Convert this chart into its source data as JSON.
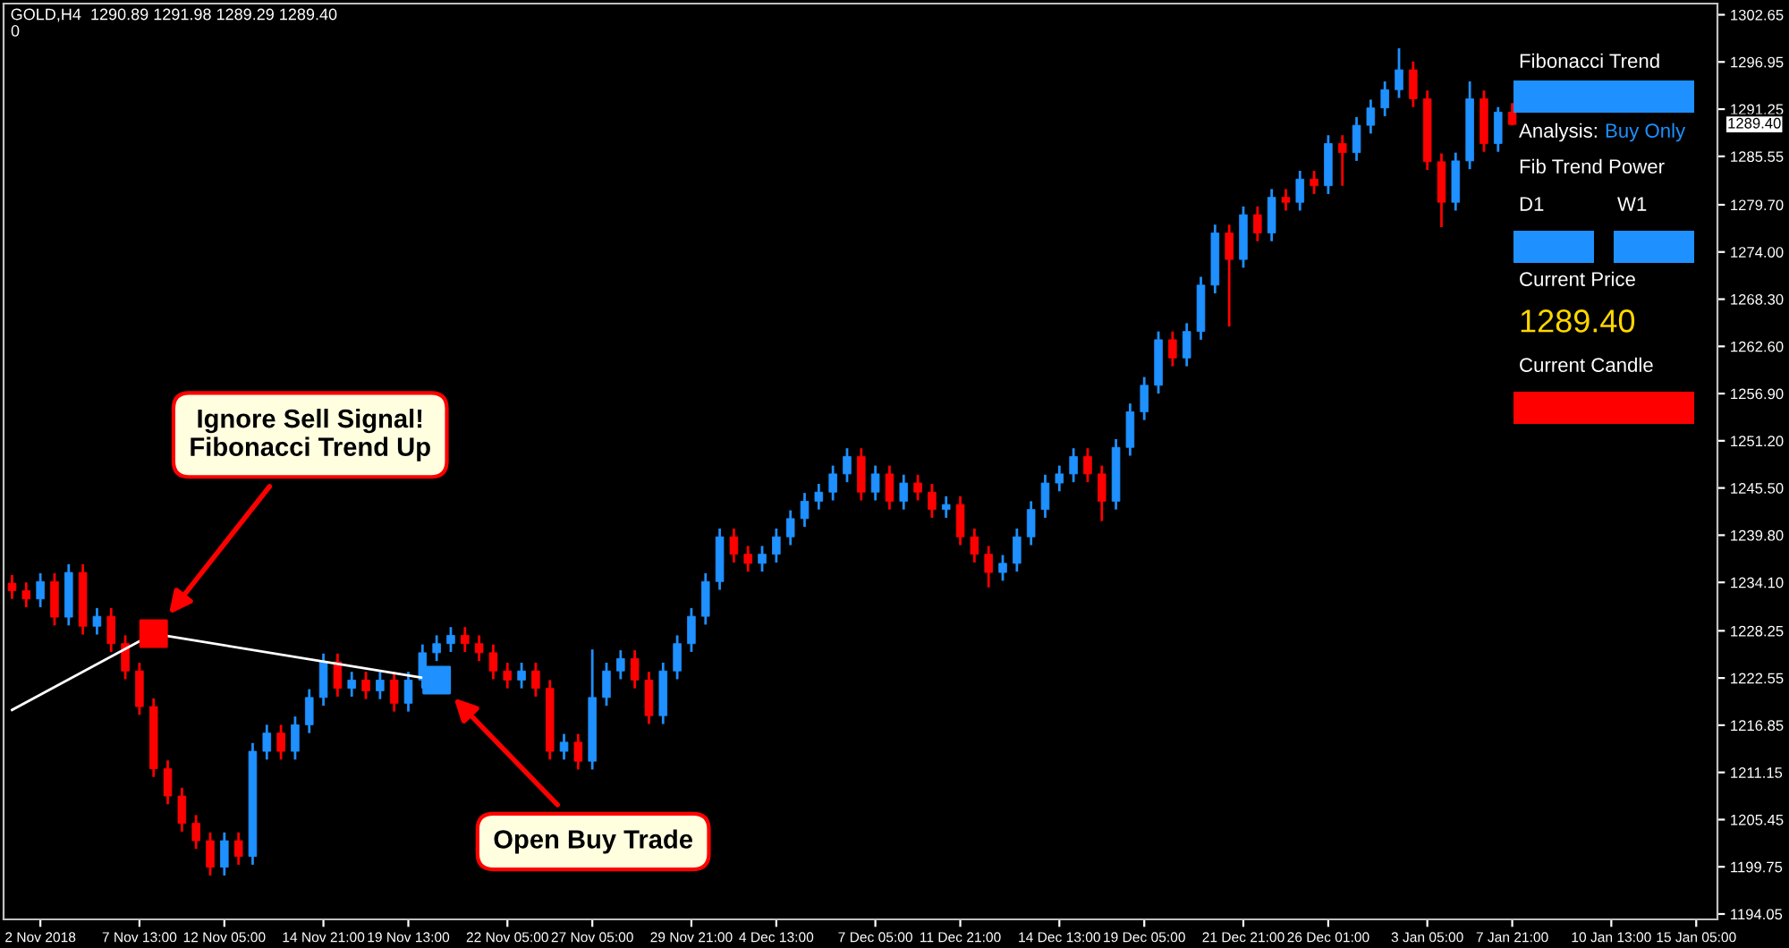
{
  "chart_data": {
    "type": "candlestick",
    "title": "GOLD,H4  1290.89 1291.98 1289.29 1289.40",
    "categories": [
      null,
      null,
      "2 Nov 2018",
      null,
      null,
      null,
      null,
      null,
      null,
      "7 Nov 13:00",
      null,
      null,
      null,
      null,
      null,
      "12 Nov 05:00",
      null,
      null,
      null,
      null,
      null,
      null,
      "14 Nov 21:00",
      null,
      null,
      null,
      null,
      null,
      "19 Nov 13:00",
      null,
      null,
      null,
      null,
      null,
      null,
      "22 Nov 05:00",
      null,
      null,
      null,
      null,
      null,
      "27 Nov 05:00",
      null,
      null,
      null,
      null,
      null,
      null,
      "29 Nov 21:00",
      null,
      null,
      null,
      null,
      null,
      "4 Dec 13:00",
      null,
      null,
      null,
      null,
      null,
      null,
      "7 Dec 05:00",
      null,
      null,
      null,
      null,
      null,
      "11 Dec 21:00",
      null,
      null,
      null,
      null,
      null,
      null,
      "14 Dec 13:00",
      null,
      null,
      null,
      null,
      null,
      "19 Dec 05:00",
      null,
      null,
      null,
      null,
      null,
      null,
      "21 Dec 21:00",
      null,
      null,
      null,
      null,
      null,
      "26 Dec 01:00",
      null,
      null,
      null,
      null,
      null,
      null,
      "3 Jan 05:00",
      null,
      null,
      null,
      null,
      null,
      "7 Jan 21:00",
      null,
      null,
      null,
      null,
      null,
      null,
      "10 Jan 13:00",
      null,
      null,
      null,
      null,
      null,
      "15 Jan 05:00",
      null
    ],
    "ohlc": [
      [
        1234.0,
        1235.0,
        1232.1,
        1233.1
      ],
      [
        1233.1,
        1234.1,
        1231.1,
        1232.1
      ],
      [
        1232.1,
        1235.2,
        1231.1,
        1234.2
      ],
      [
        1234.2,
        1235.2,
        1228.9,
        1229.9
      ],
      [
        1229.9,
        1236.3,
        1228.9,
        1235.3
      ],
      [
        1235.3,
        1236.3,
        1227.8,
        1228.8
      ],
      [
        1228.8,
        1231.0,
        1227.8,
        1230.0
      ],
      [
        1230.0,
        1231.0,
        1225.7,
        1226.7
      ],
      [
        1226.7,
        1227.7,
        1222.4,
        1223.4
      ],
      [
        1223.4,
        1224.4,
        1218.1,
        1219.1
      ],
      [
        1219.1,
        1220.1,
        1210.6,
        1211.6
      ],
      [
        1211.6,
        1212.6,
        1207.3,
        1208.3
      ],
      [
        1208.3,
        1209.3,
        1204.0,
        1205.0
      ],
      [
        1205.0,
        1206.0,
        1201.9,
        1202.9
      ],
      [
        1202.9,
        1203.9,
        1198.7,
        1199.7
      ],
      [
        1199.7,
        1203.9,
        1198.7,
        1202.9
      ],
      [
        1202.9,
        1203.9,
        1200.0,
        1201.0
      ],
      [
        1201.0,
        1214.7,
        1200.0,
        1213.7
      ],
      [
        1213.7,
        1216.9,
        1212.7,
        1215.9
      ],
      [
        1215.9,
        1216.9,
        1212.7,
        1213.7
      ],
      [
        1213.7,
        1217.9,
        1212.7,
        1216.9
      ],
      [
        1216.9,
        1221.2,
        1215.9,
        1220.2
      ],
      [
        1220.2,
        1225.5,
        1219.2,
        1224.5
      ],
      [
        1224.5,
        1225.5,
        1220.3,
        1221.3
      ],
      [
        1221.3,
        1223.3,
        1220.3,
        1222.3
      ],
      [
        1222.3,
        1223.3,
        1220.0,
        1221.0
      ],
      [
        1221.0,
        1223.3,
        1220.0,
        1222.3
      ],
      [
        1222.3,
        1223.3,
        1218.5,
        1219.5
      ],
      [
        1219.5,
        1223.3,
        1218.5,
        1222.3
      ],
      [
        1222.3,
        1226.6,
        1221.3,
        1225.6
      ],
      [
        1225.6,
        1227.7,
        1224.6,
        1226.7
      ],
      [
        1226.7,
        1228.7,
        1225.7,
        1227.7
      ],
      [
        1227.7,
        1228.7,
        1225.7,
        1226.7
      ],
      [
        1226.7,
        1227.7,
        1224.6,
        1225.6
      ],
      [
        1225.6,
        1226.6,
        1222.4,
        1223.4
      ],
      [
        1223.4,
        1224.4,
        1221.3,
        1222.3
      ],
      [
        1222.3,
        1224.4,
        1221.3,
        1223.4
      ],
      [
        1223.4,
        1224.4,
        1220.3,
        1221.3
      ],
      [
        1221.3,
        1222.3,
        1212.7,
        1213.7
      ],
      [
        1213.7,
        1215.8,
        1212.7,
        1214.8
      ],
      [
        1214.8,
        1215.8,
        1211.5,
        1212.5
      ],
      [
        1212.5,
        1226.0,
        1211.5,
        1220.2
      ],
      [
        1220.2,
        1224.4,
        1219.2,
        1223.4
      ],
      [
        1223.4,
        1225.9,
        1222.4,
        1224.9
      ],
      [
        1224.9,
        1225.9,
        1221.3,
        1222.3
      ],
      [
        1222.3,
        1223.3,
        1217.0,
        1218.0
      ],
      [
        1218.0,
        1224.4,
        1217.0,
        1223.4
      ],
      [
        1223.4,
        1227.7,
        1222.4,
        1226.7
      ],
      [
        1226.7,
        1231.0,
        1225.7,
        1230.0
      ],
      [
        1230.0,
        1235.2,
        1229.0,
        1234.2
      ],
      [
        1234.2,
        1240.6,
        1233.2,
        1239.6
      ],
      [
        1239.6,
        1240.6,
        1236.5,
        1237.5
      ],
      [
        1237.5,
        1238.5,
        1235.4,
        1236.4
      ],
      [
        1236.4,
        1238.5,
        1235.4,
        1237.5
      ],
      [
        1237.5,
        1240.6,
        1236.5,
        1239.6
      ],
      [
        1239.6,
        1242.8,
        1238.6,
        1241.8
      ],
      [
        1241.8,
        1244.9,
        1240.8,
        1243.9
      ],
      [
        1243.9,
        1246.0,
        1242.9,
        1245.0
      ],
      [
        1245.0,
        1248.2,
        1244.0,
        1247.2
      ],
      [
        1247.2,
        1250.3,
        1246.2,
        1249.3
      ],
      [
        1249.3,
        1250.3,
        1244.0,
        1245.0
      ],
      [
        1245.0,
        1248.2,
        1244.0,
        1247.2
      ],
      [
        1247.2,
        1248.2,
        1242.9,
        1243.9
      ],
      [
        1243.9,
        1247.1,
        1242.9,
        1246.1
      ],
      [
        1246.1,
        1247.1,
        1244.0,
        1245.0
      ],
      [
        1245.0,
        1246.0,
        1241.9,
        1242.9
      ],
      [
        1242.9,
        1244.5,
        1241.9,
        1243.5
      ],
      [
        1243.5,
        1244.5,
        1238.6,
        1239.6
      ],
      [
        1239.6,
        1240.6,
        1236.5,
        1237.5
      ],
      [
        1237.5,
        1238.5,
        1233.5,
        1235.3
      ],
      [
        1235.3,
        1237.4,
        1234.3,
        1236.4
      ],
      [
        1236.4,
        1240.6,
        1235.4,
        1239.6
      ],
      [
        1239.6,
        1243.9,
        1238.6,
        1242.9
      ],
      [
        1242.9,
        1247.1,
        1241.9,
        1246.1
      ],
      [
        1246.1,
        1248.2,
        1245.1,
        1247.2
      ],
      [
        1247.2,
        1250.3,
        1246.2,
        1249.3
      ],
      [
        1249.3,
        1250.3,
        1246.2,
        1247.2
      ],
      [
        1247.2,
        1248.2,
        1241.5,
        1243.9
      ],
      [
        1243.9,
        1251.4,
        1242.9,
        1250.4
      ],
      [
        1250.4,
        1255.7,
        1249.4,
        1254.7
      ],
      [
        1254.7,
        1258.9,
        1253.7,
        1257.9
      ],
      [
        1257.9,
        1264.4,
        1256.9,
        1263.4
      ],
      [
        1263.4,
        1264.4,
        1260.2,
        1261.2
      ],
      [
        1261.2,
        1265.4,
        1260.2,
        1264.4
      ],
      [
        1264.4,
        1271.0,
        1263.4,
        1270.0
      ],
      [
        1270.0,
        1277.3,
        1269.0,
        1276.3
      ],
      [
        1276.3,
        1277.3,
        1265.0,
        1273.1
      ],
      [
        1273.1,
        1279.5,
        1272.1,
        1278.5
      ],
      [
        1278.5,
        1279.5,
        1275.3,
        1276.3
      ],
      [
        1276.3,
        1281.6,
        1275.3,
        1280.6
      ],
      [
        1280.6,
        1281.6,
        1279.0,
        1280.0
      ],
      [
        1280.0,
        1283.8,
        1279.0,
        1282.8
      ],
      [
        1282.8,
        1283.8,
        1281.0,
        1282.0
      ],
      [
        1282.0,
        1288.1,
        1281.0,
        1287.1
      ],
      [
        1287.1,
        1288.1,
        1282.0,
        1286.0
      ],
      [
        1286.0,
        1290.3,
        1285.0,
        1289.3
      ],
      [
        1289.3,
        1292.4,
        1288.3,
        1291.4
      ],
      [
        1291.4,
        1294.6,
        1290.4,
        1293.6
      ],
      [
        1293.6,
        1298.6,
        1292.6,
        1296.0
      ],
      [
        1296.0,
        1297.0,
        1291.5,
        1292.5
      ],
      [
        1292.5,
        1293.5,
        1283.9,
        1284.9
      ],
      [
        1284.9,
        1285.9,
        1277.0,
        1280.0
      ],
      [
        1280.0,
        1286.0,
        1279.0,
        1285.0
      ],
      [
        1285.0,
        1294.6,
        1284.0,
        1292.5
      ],
      [
        1292.5,
        1293.5,
        1286.1,
        1287.1
      ],
      [
        1287.1,
        1291.5,
        1286.1,
        1290.89
      ],
      [
        1290.89,
        1291.98,
        1289.29,
        1289.4
      ],
      null,
      null,
      null,
      null,
      null,
      null,
      null,
      null,
      null,
      null,
      null,
      null,
      null,
      null
    ],
    "series": [
      {
        "type": "line",
        "color": "#ffffff",
        "values": [
          1218.7,
          null,
          null,
          null,
          null,
          null,
          null,
          null,
          null,
          null,
          1227.9,
          null,
          null,
          null,
          null,
          null,
          null,
          null,
          null,
          null,
          null,
          null,
          null,
          null,
          null,
          null,
          null,
          null,
          null,
          null,
          1222.3,
          null,
          null,
          null,
          null,
          null,
          null,
          null,
          null,
          null,
          null,
          null,
          null,
          null,
          null,
          null,
          null,
          null,
          null,
          null,
          null,
          null,
          null,
          null,
          null,
          null,
          null,
          null,
          null,
          null,
          null,
          null,
          null,
          null,
          null,
          null,
          null,
          null,
          null,
          null,
          null,
          null,
          null,
          null,
          null,
          null,
          null,
          null,
          null,
          null,
          null,
          null,
          null,
          null,
          null,
          null,
          null,
          null,
          null,
          null,
          null,
          null,
          null,
          null,
          null,
          null,
          null,
          null,
          null,
          null,
          null,
          null,
          null,
          null,
          null,
          null,
          null,
          null,
          null,
          null,
          null,
          null,
          null,
          null,
          null,
          null,
          null,
          null,
          null,
          null,
          null
        ]
      },
      {
        "type": "scatter",
        "color": "#ff0000",
        "marker": "square",
        "values": [
          null,
          null,
          null,
          null,
          null,
          null,
          null,
          null,
          null,
          null,
          1227.9,
          null,
          null,
          null,
          null,
          null,
          null,
          null,
          null,
          null,
          null,
          null,
          null,
          null,
          null,
          null,
          null,
          null,
          null,
          null,
          null,
          null,
          null,
          null,
          null,
          null,
          null,
          null,
          null,
          null,
          null,
          null,
          null,
          null,
          null,
          null,
          null,
          null,
          null,
          null,
          null,
          null,
          null,
          null,
          null,
          null,
          null,
          null,
          null,
          null,
          null,
          null,
          null,
          null,
          null,
          null,
          null,
          null,
          null,
          null,
          null,
          null,
          null,
          null,
          null,
          null,
          null,
          null,
          null,
          null,
          null,
          null,
          null,
          null,
          null,
          null,
          null,
          null,
          null,
          null,
          null,
          null,
          null,
          null,
          null,
          null,
          null,
          null,
          null,
          null,
          null,
          null,
          null,
          null,
          null,
          null,
          null,
          null,
          null,
          null,
          null,
          null,
          null,
          null,
          null,
          null,
          null,
          null,
          null,
          null,
          null
        ]
      },
      {
        "type": "scatter",
        "color": "#1e90ff",
        "marker": "square",
        "values": [
          null,
          null,
          null,
          null,
          null,
          null,
          null,
          null,
          null,
          null,
          null,
          null,
          null,
          null,
          null,
          null,
          null,
          null,
          null,
          null,
          null,
          null,
          null,
          null,
          null,
          null,
          null,
          null,
          null,
          null,
          1222.3,
          null,
          null,
          null,
          null,
          null,
          null,
          null,
          null,
          null,
          null,
          null,
          null,
          null,
          null,
          null,
          null,
          null,
          null,
          null,
          null,
          null,
          null,
          null,
          null,
          null,
          null,
          null,
          null,
          null,
          null,
          null,
          null,
          null,
          null,
          null,
          null,
          null,
          null,
          null,
          null,
          null,
          null,
          null,
          null,
          null,
          null,
          null,
          null,
          null,
          null,
          null,
          null,
          null,
          null,
          null,
          null,
          null,
          null,
          null,
          null,
          null,
          null,
          null,
          null,
          null,
          null,
          null,
          null,
          null,
          null,
          null,
          null,
          null,
          null,
          null,
          null,
          null,
          null,
          null,
          null,
          null,
          null,
          null,
          null,
          null,
          null,
          null,
          null,
          null,
          null
        ]
      }
    ],
    "ylim": [
      1193.4,
      1304.0
    ],
    "yticks": [
      1194.05,
      1199.75,
      1205.45,
      1211.15,
      1216.85,
      1222.55,
      1228.25,
      {
        "value": 1234.1,
        "label": "1234.10"
      },
      {
        "value": 1239.8,
        "label": "1239.80"
      },
      {
        "value": 1245.5,
        "label": "1245.50"
      },
      {
        "value": 1251.2,
        "label": "1251.20"
      },
      {
        "value": 1256.9,
        "label": "1256.90"
      },
      {
        "value": 1262.6,
        "label": "1262.60"
      },
      {
        "value": 1268.3,
        "label": "1268.30"
      },
      {
        "value": 1274.0,
        "label": "1274.00"
      },
      {
        "value": 1279.7,
        "label": "1279.70"
      },
      1285.55,
      1291.25,
      1296.95,
      1302.65
    ],
    "annotations": [
      "Ignore Sell Signal!\nFibonacci Trend Up",
      "Open Buy Trade",
      "1289.40",
      "0",
      "Fibonacci Trend",
      "Analysis:",
      "Buy Only",
      "Fib Trend Power",
      "D1",
      "W1",
      "Current Price",
      "1289.40",
      "Current Candle"
    ],
    "grid": false
  }
}
